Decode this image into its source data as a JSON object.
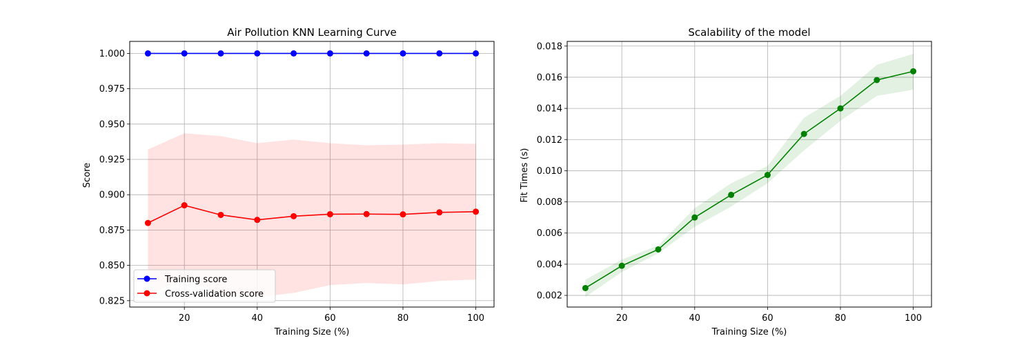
{
  "chart_data": [
    {
      "type": "line",
      "title": "Air Pollution KNN Learning Curve",
      "xlabel": "Training Size (%)",
      "ylabel": "Score",
      "x": [
        10,
        20,
        30,
        40,
        50,
        60,
        70,
        80,
        90,
        100
      ],
      "xlim": [
        5,
        105
      ],
      "ylim": [
        0.8205,
        1.0085
      ],
      "xticks": [
        20,
        40,
        60,
        80,
        100
      ],
      "xtick_labels": [
        "20",
        "40",
        "60",
        "80",
        "100"
      ],
      "yticks": [
        0.825,
        0.85,
        0.875,
        0.9,
        0.925,
        0.95,
        0.975,
        1.0
      ],
      "ytick_labels": [
        "0.825",
        "0.850",
        "0.875",
        "0.900",
        "0.925",
        "0.950",
        "0.975",
        "1.000"
      ],
      "grid": true,
      "legend_position": "lower-left",
      "series": [
        {
          "name": "Training score",
          "color": "#0000ff",
          "marker": "circle",
          "values": [
            1.0,
            1.0,
            1.0,
            1.0,
            1.0,
            1.0,
            1.0,
            1.0,
            1.0,
            1.0
          ]
        },
        {
          "name": "Cross-validation score",
          "color": "#ff0000",
          "marker": "circle",
          "values": [
            0.88,
            0.8925,
            0.8857,
            0.8822,
            0.8848,
            0.8862,
            0.8863,
            0.8861,
            0.8875,
            0.888
          ],
          "band_lower": [
            0.828,
            0.8415,
            0.8295,
            0.8275,
            0.8305,
            0.836,
            0.8375,
            0.8365,
            0.839,
            0.84
          ],
          "band_upper": [
            0.932,
            0.9435,
            0.9415,
            0.9365,
            0.939,
            0.9365,
            0.935,
            0.9355,
            0.9365,
            0.936
          ],
          "band_color": "#ff0000",
          "band_opacity": 0.11
        }
      ]
    },
    {
      "type": "line",
      "title": "Scalability of the model",
      "xlabel": "Training Size (%)",
      "ylabel": "Fit Times (s)",
      "x": [
        10,
        20,
        30,
        40,
        50,
        60,
        70,
        80,
        90,
        100
      ],
      "xlim": [
        5,
        105
      ],
      "ylim": [
        0.00125,
        0.0183
      ],
      "xticks": [
        20,
        40,
        60,
        80,
        100
      ],
      "xtick_labels": [
        "20",
        "40",
        "60",
        "80",
        "100"
      ],
      "yticks": [
        0.002,
        0.004,
        0.006,
        0.008,
        0.01,
        0.012,
        0.014,
        0.016,
        0.018
      ],
      "ytick_labels": [
        "0.002",
        "0.004",
        "0.006",
        "0.008",
        "0.010",
        "0.012",
        "0.014",
        "0.016",
        "0.018"
      ],
      "grid": true,
      "series": [
        {
          "name": "",
          "color": "#008000",
          "marker": "circle",
          "values": [
            0.00247,
            0.0039,
            0.00495,
            0.007,
            0.00845,
            0.00973,
            0.01236,
            0.014,
            0.01582,
            0.01638
          ],
          "band_lower": [
            0.0019,
            0.0035,
            0.0047,
            0.0064,
            0.0077,
            0.0092,
            0.0113,
            0.0132,
            0.0148,
            0.0152
          ],
          "band_upper": [
            0.003,
            0.0043,
            0.0052,
            0.0076,
            0.0092,
            0.0103,
            0.0134,
            0.0148,
            0.0168,
            0.0175
          ],
          "band_color": "#008000",
          "band_opacity": 0.11
        }
      ]
    }
  ]
}
